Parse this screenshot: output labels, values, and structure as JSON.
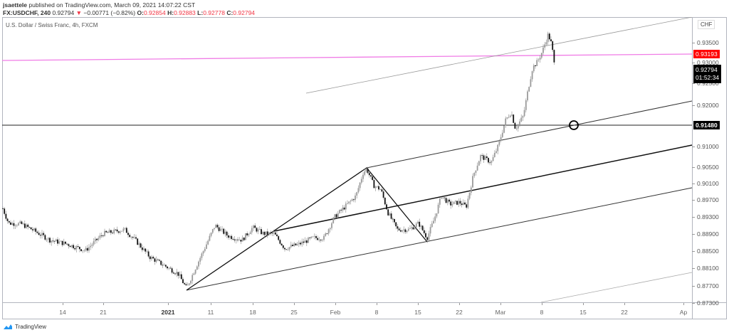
{
  "header": {
    "author": "jsaettele",
    "published": "published on TradingView.com, March 09, 2021 14:07:22 CST",
    "symbol": "FX:USDCHF, 240",
    "last": "0.92794",
    "change": "−0.00771 (−0.82%)",
    "o_label": "O:",
    "o": "0.92854",
    "h_label": "H:",
    "h": "0.92883",
    "l_label": "L:",
    "l": "0.92778",
    "c_label": "C:",
    "c": "0.92794"
  },
  "legend": "U.S. Dollar / Swiss Franc, 4h, FXCM",
  "currency": "CHF",
  "badges": {
    "resistance": {
      "value": "0.93193",
      "color": "#ff0000"
    },
    "last": {
      "value": "0.92794",
      "countdown": "01:52:34",
      "color": "#000000"
    },
    "support": {
      "value": "0.91480",
      "color": "#000000"
    }
  },
  "footer": {
    "brand": "TradingView"
  },
  "chart_data": {
    "type": "candlestick",
    "title": "U.S. Dollar / Swiss Franc, 4h, FXCM",
    "xlabel": "",
    "ylabel": "CHF",
    "ylim": [
      0.8723,
      0.937
    ],
    "x_ticks": [
      "14",
      "21",
      "2021",
      "11",
      "18",
      "25",
      "Feb",
      "8",
      "15",
      "22",
      "Mar",
      "8",
      "15",
      "22",
      "Ap"
    ],
    "y_ticks": [
      "0.93500",
      "0.93000",
      "0.92500",
      "0.92000",
      "0.91000",
      "0.90500",
      "0.90100",
      "0.89700",
      "0.89300",
      "0.88900",
      "0.88500",
      "0.88100",
      "0.87700",
      "0.87300"
    ],
    "price_path": [
      {
        "x": 4,
        "p": 0.8955
      },
      {
        "x": 12,
        "p": 0.892
      },
      {
        "x": 30,
        "p": 0.8918
      },
      {
        "x": 45,
        "p": 0.8905
      },
      {
        "x": 70,
        "p": 0.888
      },
      {
        "x": 95,
        "p": 0.887
      },
      {
        "x": 120,
        "p": 0.8855
      },
      {
        "x": 145,
        "p": 0.8895
      },
      {
        "x": 175,
        "p": 0.8905
      },
      {
        "x": 190,
        "p": 0.888
      },
      {
        "x": 210,
        "p": 0.884
      },
      {
        "x": 235,
        "p": 0.8815
      },
      {
        "x": 250,
        "p": 0.88
      },
      {
        "x": 262,
        "p": 0.8765
      },
      {
        "x": 275,
        "p": 0.8815
      },
      {
        "x": 290,
        "p": 0.887
      },
      {
        "x": 302,
        "p": 0.8915
      },
      {
        "x": 320,
        "p": 0.889
      },
      {
        "x": 340,
        "p": 0.888
      },
      {
        "x": 355,
        "p": 0.891
      },
      {
        "x": 370,
        "p": 0.8895
      },
      {
        "x": 385,
        "p": 0.8895
      },
      {
        "x": 400,
        "p": 0.886
      },
      {
        "x": 420,
        "p": 0.887
      },
      {
        "x": 440,
        "p": 0.8885
      },
      {
        "x": 455,
        "p": 0.8885
      },
      {
        "x": 470,
        "p": 0.8935
      },
      {
        "x": 485,
        "p": 0.896
      },
      {
        "x": 500,
        "p": 0.8985
      },
      {
        "x": 510,
        "p": 0.904
      },
      {
        "x": 515,
        "p": 0.905
      },
      {
        "x": 525,
        "p": 0.901
      },
      {
        "x": 535,
        "p": 0.9
      },
      {
        "x": 545,
        "p": 0.8945
      },
      {
        "x": 558,
        "p": 0.8905
      },
      {
        "x": 575,
        "p": 0.8905
      },
      {
        "x": 588,
        "p": 0.892
      },
      {
        "x": 600,
        "p": 0.8885
      },
      {
        "x": 610,
        "p": 0.893
      },
      {
        "x": 620,
        "p": 0.8985
      },
      {
        "x": 632,
        "p": 0.8965
      },
      {
        "x": 645,
        "p": 0.897
      },
      {
        "x": 655,
        "p": 0.896
      },
      {
        "x": 665,
        "p": 0.9035
      },
      {
        "x": 675,
        "p": 0.908
      },
      {
        "x": 690,
        "p": 0.9065
      },
      {
        "x": 700,
        "p": 0.9105
      },
      {
        "x": 710,
        "p": 0.9165
      },
      {
        "x": 718,
        "p": 0.9185
      },
      {
        "x": 724,
        "p": 0.9145
      },
      {
        "x": 735,
        "p": 0.9175
      },
      {
        "x": 742,
        "p": 0.924
      },
      {
        "x": 748,
        "p": 0.929
      },
      {
        "x": 755,
        "p": 0.9305
      },
      {
        "x": 762,
        "p": 0.933
      },
      {
        "x": 770,
        "p": 0.937
      },
      {
        "x": 775,
        "p": 0.9345
      },
      {
        "x": 780,
        "p": 0.9279
      }
    ],
    "drawings": {
      "horizontal_support": 0.9148,
      "resistance_line_magenta": 0.9319,
      "target_circle": {
        "x": 806,
        "p": 0.9148
      }
    },
    "grid": false
  }
}
